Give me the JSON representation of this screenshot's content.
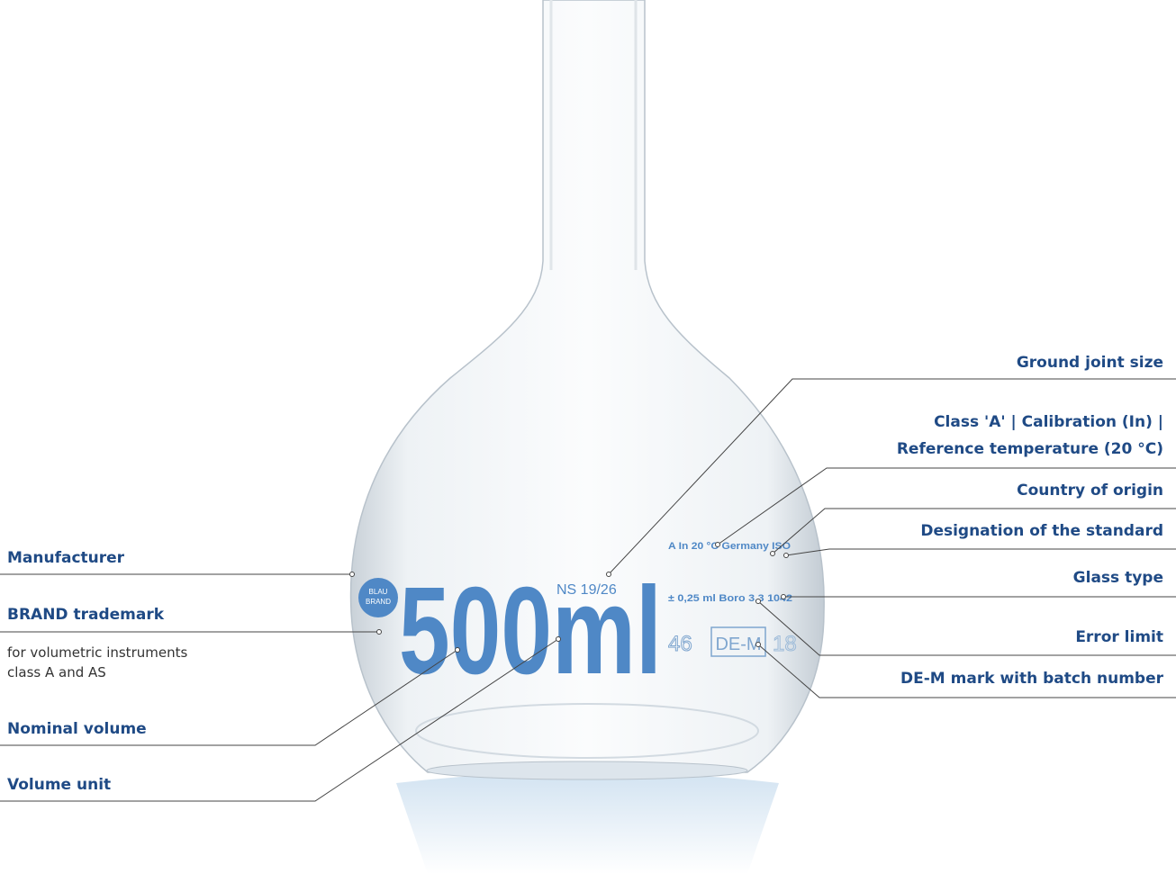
{
  "left_callouts": [
    {
      "label": "Manufacturer"
    },
    {
      "label": "BRAND trademark",
      "note": [
        "for volumetric instruments",
        "class A and AS"
      ]
    },
    {
      "label": "Nominal volume"
    },
    {
      "label": "Volume unit"
    }
  ],
  "right_callouts": [
    {
      "label": [
        "Ground joint size"
      ]
    },
    {
      "label": [
        "Class 'A' | Calibration (In) |",
        "Reference temperature (20 °C)"
      ]
    },
    {
      "label": [
        "Country of origin"
      ]
    },
    {
      "label": [
        "Designation of the standard"
      ]
    },
    {
      "label": [
        "Glass type"
      ]
    },
    {
      "label": [
        "Error limit"
      ]
    },
    {
      "label": [
        "DE-M mark with batch number"
      ]
    }
  ],
  "flask_markings": {
    "logo": [
      "BLAU",
      "BRAND"
    ],
    "volume": "500",
    "unit": "ml",
    "joint": "NS 19/26",
    "class_line": "A  In 20 °C  Germany  ISO",
    "error_line": "± 0,25 ml   Boro 3.3 1042",
    "batch": "46",
    "mark": "DE-M",
    "year": "18"
  }
}
